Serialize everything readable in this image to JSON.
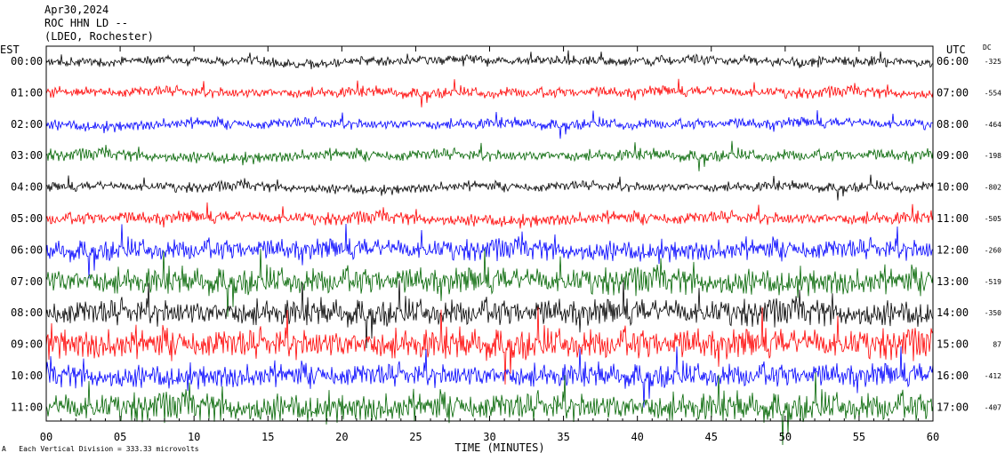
{
  "header": {
    "date": "Apr30,2024",
    "station": "ROC HHN LD --",
    "network": "(LDEO, Rochester)"
  },
  "axis_labels": {
    "left_zone": "EST",
    "right_zone": "UTC",
    "dc_header": "DC"
  },
  "footnote": {
    "marker": "A",
    "text": "Each Vertical Division = 333.33 microvolts"
  },
  "chart_data": {
    "type": "line",
    "title": "ROC HHN LD --",
    "xlabel": "TIME (MINUTES)",
    "xlim": [
      0,
      60
    ],
    "x_ticks": [
      0,
      5,
      10,
      15,
      20,
      25,
      30,
      35,
      40,
      45,
      50,
      55,
      60
    ],
    "x_tick_labels": [
      "00",
      "05",
      "10",
      "15",
      "20",
      "25",
      "30",
      "35",
      "40",
      "45",
      "50",
      "55",
      "60"
    ],
    "grid": true,
    "vertical_division_microvolts": 333.33,
    "colors": [
      "#000000",
      "#ff0000",
      "#0000ff",
      "#006400"
    ],
    "rows": [
      {
        "est": "00:00",
        "utc": "06:00",
        "dc": "-325",
        "color": "#000000",
        "activity": 1.0
      },
      {
        "est": "01:00",
        "utc": "07:00",
        "dc": "-554",
        "color": "#ff0000",
        "activity": 1.1
      },
      {
        "est": "02:00",
        "utc": "08:00",
        "dc": "-464",
        "color": "#0000ff",
        "activity": 1.1
      },
      {
        "est": "03:00",
        "utc": "09:00",
        "dc": "-198",
        "color": "#006400",
        "activity": 1.2
      },
      {
        "est": "04:00",
        "utc": "10:00",
        "dc": "-802",
        "color": "#000000",
        "activity": 1.0
      },
      {
        "est": "05:00",
        "utc": "11:00",
        "dc": "-505",
        "color": "#ff0000",
        "activity": 1.3
      },
      {
        "est": "06:00",
        "utc": "12:00",
        "dc": "-260",
        "color": "#0000ff",
        "activity": 2.2
      },
      {
        "est": "07:00",
        "utc": "13:00",
        "dc": "-519",
        "color": "#006400",
        "activity": 2.8
      },
      {
        "est": "08:00",
        "utc": "14:00",
        "dc": "-350",
        "color": "#000000",
        "activity": 2.8
      },
      {
        "est": "09:00",
        "utc": "15:00",
        "dc": "87",
        "color": "#ff0000",
        "activity": 3.2
      },
      {
        "est": "10:00",
        "utc": "16:00",
        "dc": "-412",
        "color": "#0000ff",
        "activity": 2.5
      },
      {
        "est": "11:00",
        "utc": "17:00",
        "dc": "-407",
        "color": "#006400",
        "activity": 3.0
      }
    ]
  }
}
